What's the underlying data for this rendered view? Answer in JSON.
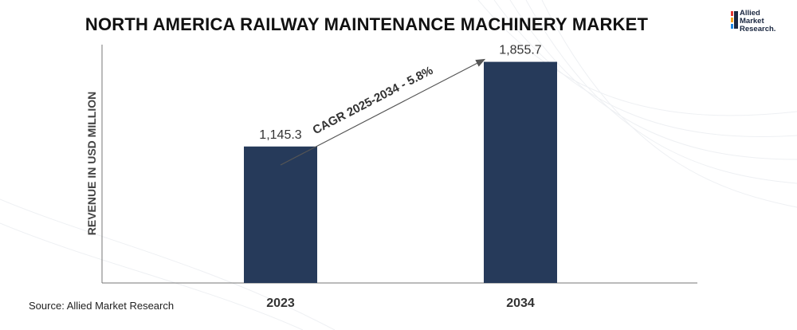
{
  "title": "NORTH AMERICA RAILWAY MAINTENANCE MACHINERY MARKET",
  "logo": {
    "lines": [
      "Allied",
      "Market",
      "Research."
    ]
  },
  "source": "Source: Allied Market Research",
  "colors": {
    "bar": "#263a5a",
    "axis": "#555555",
    "text": "#333333"
  },
  "chart_data": {
    "type": "bar",
    "categories": [
      "2023",
      "2034"
    ],
    "values": [
      1145.3,
      1855.7
    ],
    "value_labels": [
      "1,145.3",
      "1,855.7"
    ],
    "title": "NORTH AMERICA RAILWAY MAINTENANCE MACHINERY MARKET",
    "xlabel": "",
    "ylabel": "REVENUE IN USD MILLION",
    "ylim": [
      0,
      2000
    ],
    "grid": false,
    "annotation": "CAGR 2025-2034 - 5.8%"
  }
}
